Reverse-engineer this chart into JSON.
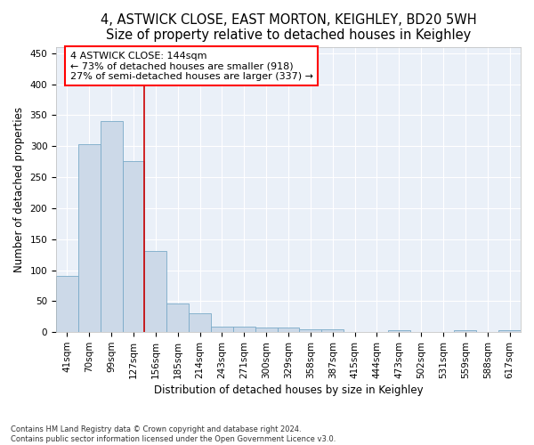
{
  "title": "4, ASTWICK CLOSE, EAST MORTON, KEIGHLEY, BD20 5WH",
  "subtitle": "Size of property relative to detached houses in Keighley",
  "xlabel": "Distribution of detached houses by size in Keighley",
  "ylabel": "Number of detached properties",
  "categories": [
    "41sqm",
    "70sqm",
    "99sqm",
    "127sqm",
    "156sqm",
    "185sqm",
    "214sqm",
    "243sqm",
    "271sqm",
    "300sqm",
    "329sqm",
    "358sqm",
    "387sqm",
    "415sqm",
    "444sqm",
    "473sqm",
    "502sqm",
    "531sqm",
    "559sqm",
    "588sqm",
    "617sqm"
  ],
  "values": [
    91,
    303,
    340,
    276,
    131,
    46,
    30,
    9,
    9,
    7,
    7,
    4,
    4,
    1,
    1,
    3,
    0,
    0,
    3,
    0,
    3
  ],
  "bar_color": "#ccd9e8",
  "bar_edge_color": "#7aaac8",
  "property_line_x": 3.5,
  "annotation_text": "4 ASTWICK CLOSE: 144sqm\n← 73% of detached houses are smaller (918)\n27% of semi-detached houses are larger (337) →",
  "annotation_box_color": "white",
  "annotation_box_edge_color": "red",
  "property_line_color": "#cc0000",
  "ylim": [
    0,
    460
  ],
  "yticks": [
    0,
    50,
    100,
    150,
    200,
    250,
    300,
    350,
    400,
    450
  ],
  "footer": "Contains HM Land Registry data © Crown copyright and database right 2024.\nContains public sector information licensed under the Open Government Licence v3.0.",
  "bg_color": "#eaf0f8",
  "grid_color": "#ffffff",
  "title_fontsize": 10.5,
  "label_fontsize": 8.5,
  "tick_fontsize": 7.5,
  "annot_fontsize": 8.0
}
